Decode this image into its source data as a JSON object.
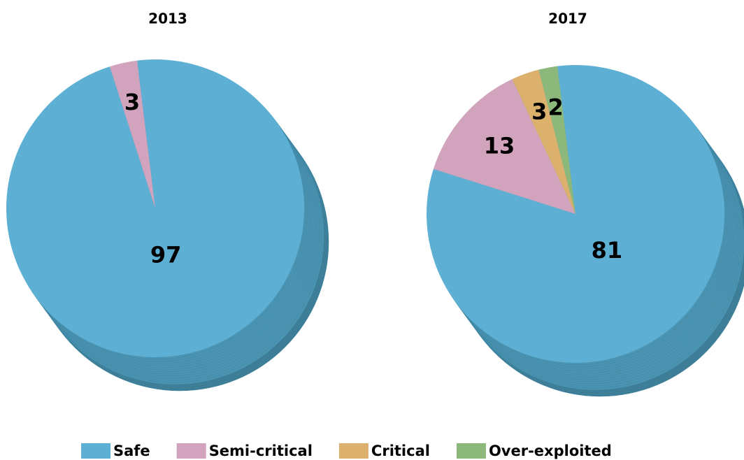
{
  "chart_data": [
    {
      "type": "pie",
      "title": "2013",
      "categories": [
        "Safe",
        "Semi-critical"
      ],
      "values": [
        97,
        3
      ],
      "colors": [
        "#5db0d4",
        "#d2a3bd"
      ]
    },
    {
      "type": "pie",
      "title": "2017",
      "categories": [
        "Safe",
        "Semi-critical",
        "Critical",
        "Over-exploited"
      ],
      "values": [
        81,
        13,
        3,
        2
      ],
      "colors": [
        "#5db0d4",
        "#d2a3bd",
        "#dcb06d",
        "#8db87c"
      ]
    }
  ]
}
